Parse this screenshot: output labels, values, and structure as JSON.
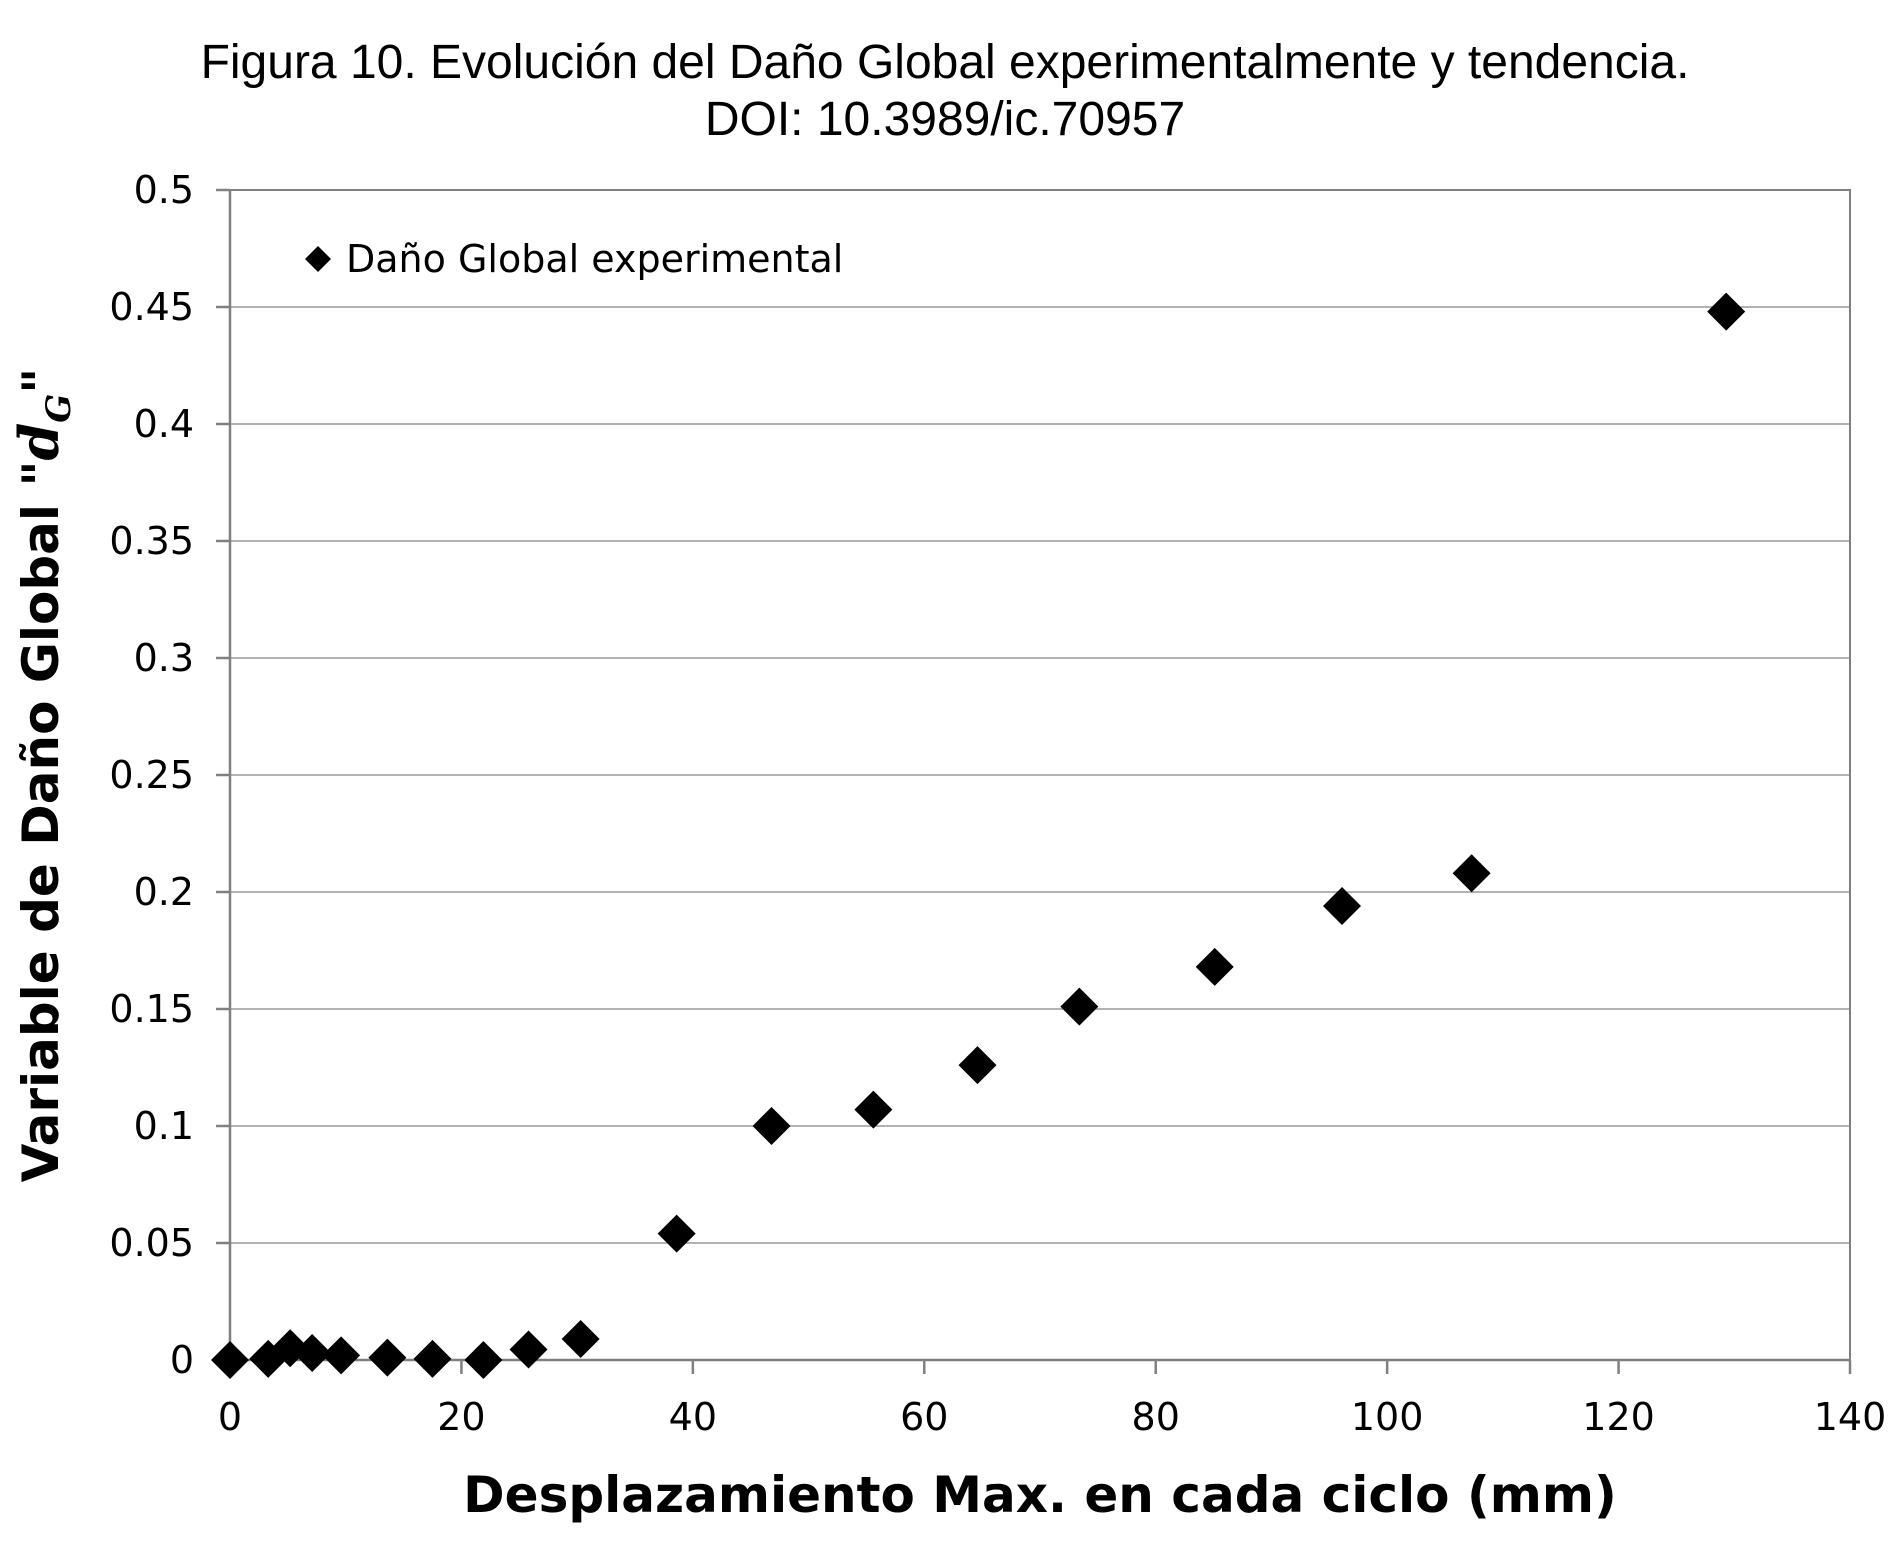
{
  "chart_data": {
    "type": "scatter",
    "title": "Figura 10. Evolución del Daño Global experimentalmente y tendencia.",
    "subtitle": "DOI: 10.3989/ic.70957",
    "xlabel": "Desplazamiento Max. en cada ciclo  (mm)",
    "ylabel_prefix": "Variable de Daño Global \"",
    "ylabel_symbol": "d",
    "ylabel_subscript": "G",
    "ylabel_suffix": "\"",
    "xlim": [
      0,
      140
    ],
    "ylim": [
      0,
      0.5
    ],
    "x_ticks": [
      0,
      20,
      40,
      60,
      80,
      100,
      120,
      140
    ],
    "x_tick_labels": [
      "0",
      "20",
      "40",
      "60",
      "80",
      "100",
      "120",
      "140"
    ],
    "y_ticks": [
      0,
      0.05,
      0.1,
      0.15,
      0.2,
      0.25,
      0.3,
      0.35,
      0.4,
      0.45,
      0.5
    ],
    "y_tick_labels": [
      "0",
      "0.05",
      "0.1",
      "0.15",
      "0.2",
      "0.25",
      "0.3",
      "0.35",
      "0.4",
      "0.45",
      "0.5"
    ],
    "grid": true,
    "legend_position": "top-left",
    "series": [
      {
        "name": "Daño Global experimental",
        "marker": "diamond",
        "color": "#000000",
        "x": [
          0,
          3.3,
          5.2,
          7.1,
          9.6,
          13.6,
          17.5,
          21.9,
          25.8,
          30.3,
          38.6,
          46.8,
          55.6,
          64.6,
          73.4,
          85.1,
          96.1,
          107.3,
          129.3
        ],
        "y": [
          0.0,
          0.0005,
          0.005,
          0.003,
          0.002,
          0.001,
          0.0005,
          0.0,
          0.0045,
          0.009,
          0.054,
          0.1,
          0.107,
          0.126,
          0.151,
          0.168,
          0.194,
          0.208,
          0.448
        ]
      }
    ]
  }
}
